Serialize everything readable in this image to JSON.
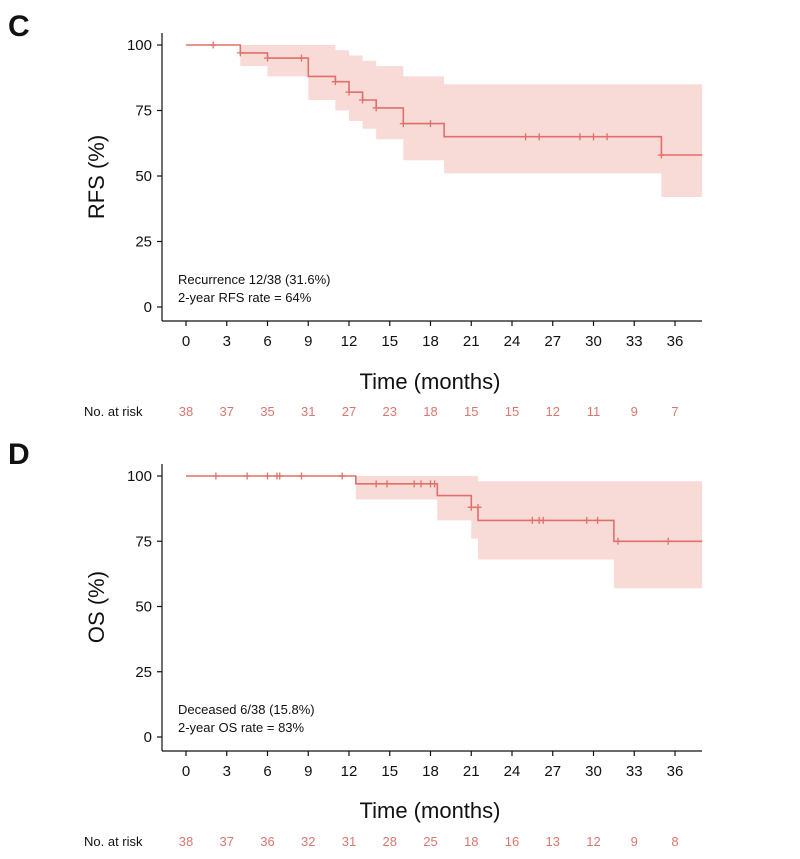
{
  "colors": {
    "curve": "#e0706a",
    "band": "#f7d3d0",
    "axis": "#111111",
    "risk_numbers": "#d9776f"
  },
  "chart_data": [
    {
      "type": "line",
      "panel_label": "C",
      "title": "",
      "xlabel": "Time (months)",
      "ylabel": "RFS (%)",
      "xlim": [
        0,
        38
      ],
      "ylim": [
        0,
        100
      ],
      "x_ticks": [
        0,
        3,
        6,
        9,
        12,
        15,
        18,
        21,
        24,
        27,
        30,
        33,
        36
      ],
      "y_ticks": [
        0,
        25,
        50,
        75,
        100
      ],
      "annotation": [
        "Recurrence 12/38 (31.6%)",
        "2-year RFS rate = 64%"
      ],
      "series": [
        {
          "name": "RFS",
          "step_x": [
            0,
            4,
            6,
            9,
            11,
            12,
            13,
            14,
            16,
            19,
            35,
            38
          ],
          "step_y": [
            100,
            97,
            95,
            88,
            86,
            82,
            79,
            76,
            70,
            65,
            58,
            58
          ],
          "ci_lower": [
            100,
            92,
            88,
            79,
            75,
            71,
            68,
            64,
            56,
            51,
            42,
            42
          ],
          "ci_upper": [
            100,
            100,
            100,
            100,
            98,
            96,
            94,
            92,
            88,
            85,
            85,
            85
          ],
          "censor_x": [
            2,
            4,
            6,
            8.5,
            11,
            12,
            13,
            14,
            16,
            18,
            25,
            26,
            29,
            30,
            31,
            35
          ],
          "censor_y": [
            100,
            97,
            95,
            95,
            86,
            82,
            79,
            76,
            70,
            70,
            65,
            65,
            65,
            65,
            65,
            58
          ]
        }
      ],
      "risk_table": {
        "label": "No. at risk",
        "times": [
          0,
          3,
          6,
          9,
          12,
          15,
          18,
          21,
          24,
          27,
          30,
          33,
          36
        ],
        "values": [
          "38",
          "37",
          "35",
          "31",
          "27",
          "23",
          "18",
          "15",
          "15",
          "12",
          "11",
          "9",
          "7"
        ]
      }
    },
    {
      "type": "line",
      "panel_label": "D",
      "title": "",
      "xlabel": "Time (months)",
      "ylabel": "OS (%)",
      "xlim": [
        0,
        38
      ],
      "ylim": [
        0,
        100
      ],
      "x_ticks": [
        0,
        3,
        6,
        9,
        12,
        15,
        18,
        21,
        24,
        27,
        30,
        33,
        36
      ],
      "y_ticks": [
        0,
        25,
        50,
        75,
        100
      ],
      "annotation": [
        "Deceased 6/38 (15.8%)",
        "2-year OS rate = 83%"
      ],
      "series": [
        {
          "name": "OS",
          "step_x": [
            0,
            12.5,
            18.5,
            21,
            21.5,
            31.5,
            38
          ],
          "step_y": [
            100,
            97,
            92.5,
            88,
            83,
            75,
            75
          ],
          "ci_lower": [
            100,
            91,
            83,
            76,
            68,
            57,
            57
          ],
          "ci_upper": [
            100,
            100,
            100,
            100,
            98,
            98,
            98
          ],
          "censor_x": [
            2.2,
            4.5,
            6,
            6.7,
            6.9,
            8.5,
            11.5,
            14,
            14.8,
            16.8,
            17.3,
            18,
            18.3,
            21,
            21.5,
            25.5,
            26,
            26.3,
            29.5,
            30.3,
            31.8,
            35.5
          ],
          "censor_y": [
            100,
            100,
            100,
            100,
            100,
            100,
            100,
            97,
            97,
            97,
            97,
            97,
            97,
            88,
            88,
            83,
            83,
            83,
            83,
            83,
            75,
            75
          ]
        }
      ],
      "risk_table": {
        "label": "No. at risk",
        "times": [
          0,
          3,
          6,
          9,
          12,
          15,
          18,
          21,
          24,
          27,
          30,
          33,
          36
        ],
        "values": [
          "38",
          "37",
          "36",
          "32",
          "31",
          "28",
          "25",
          "18",
          "16",
          "13",
          "12",
          "9",
          "8"
        ]
      }
    }
  ]
}
